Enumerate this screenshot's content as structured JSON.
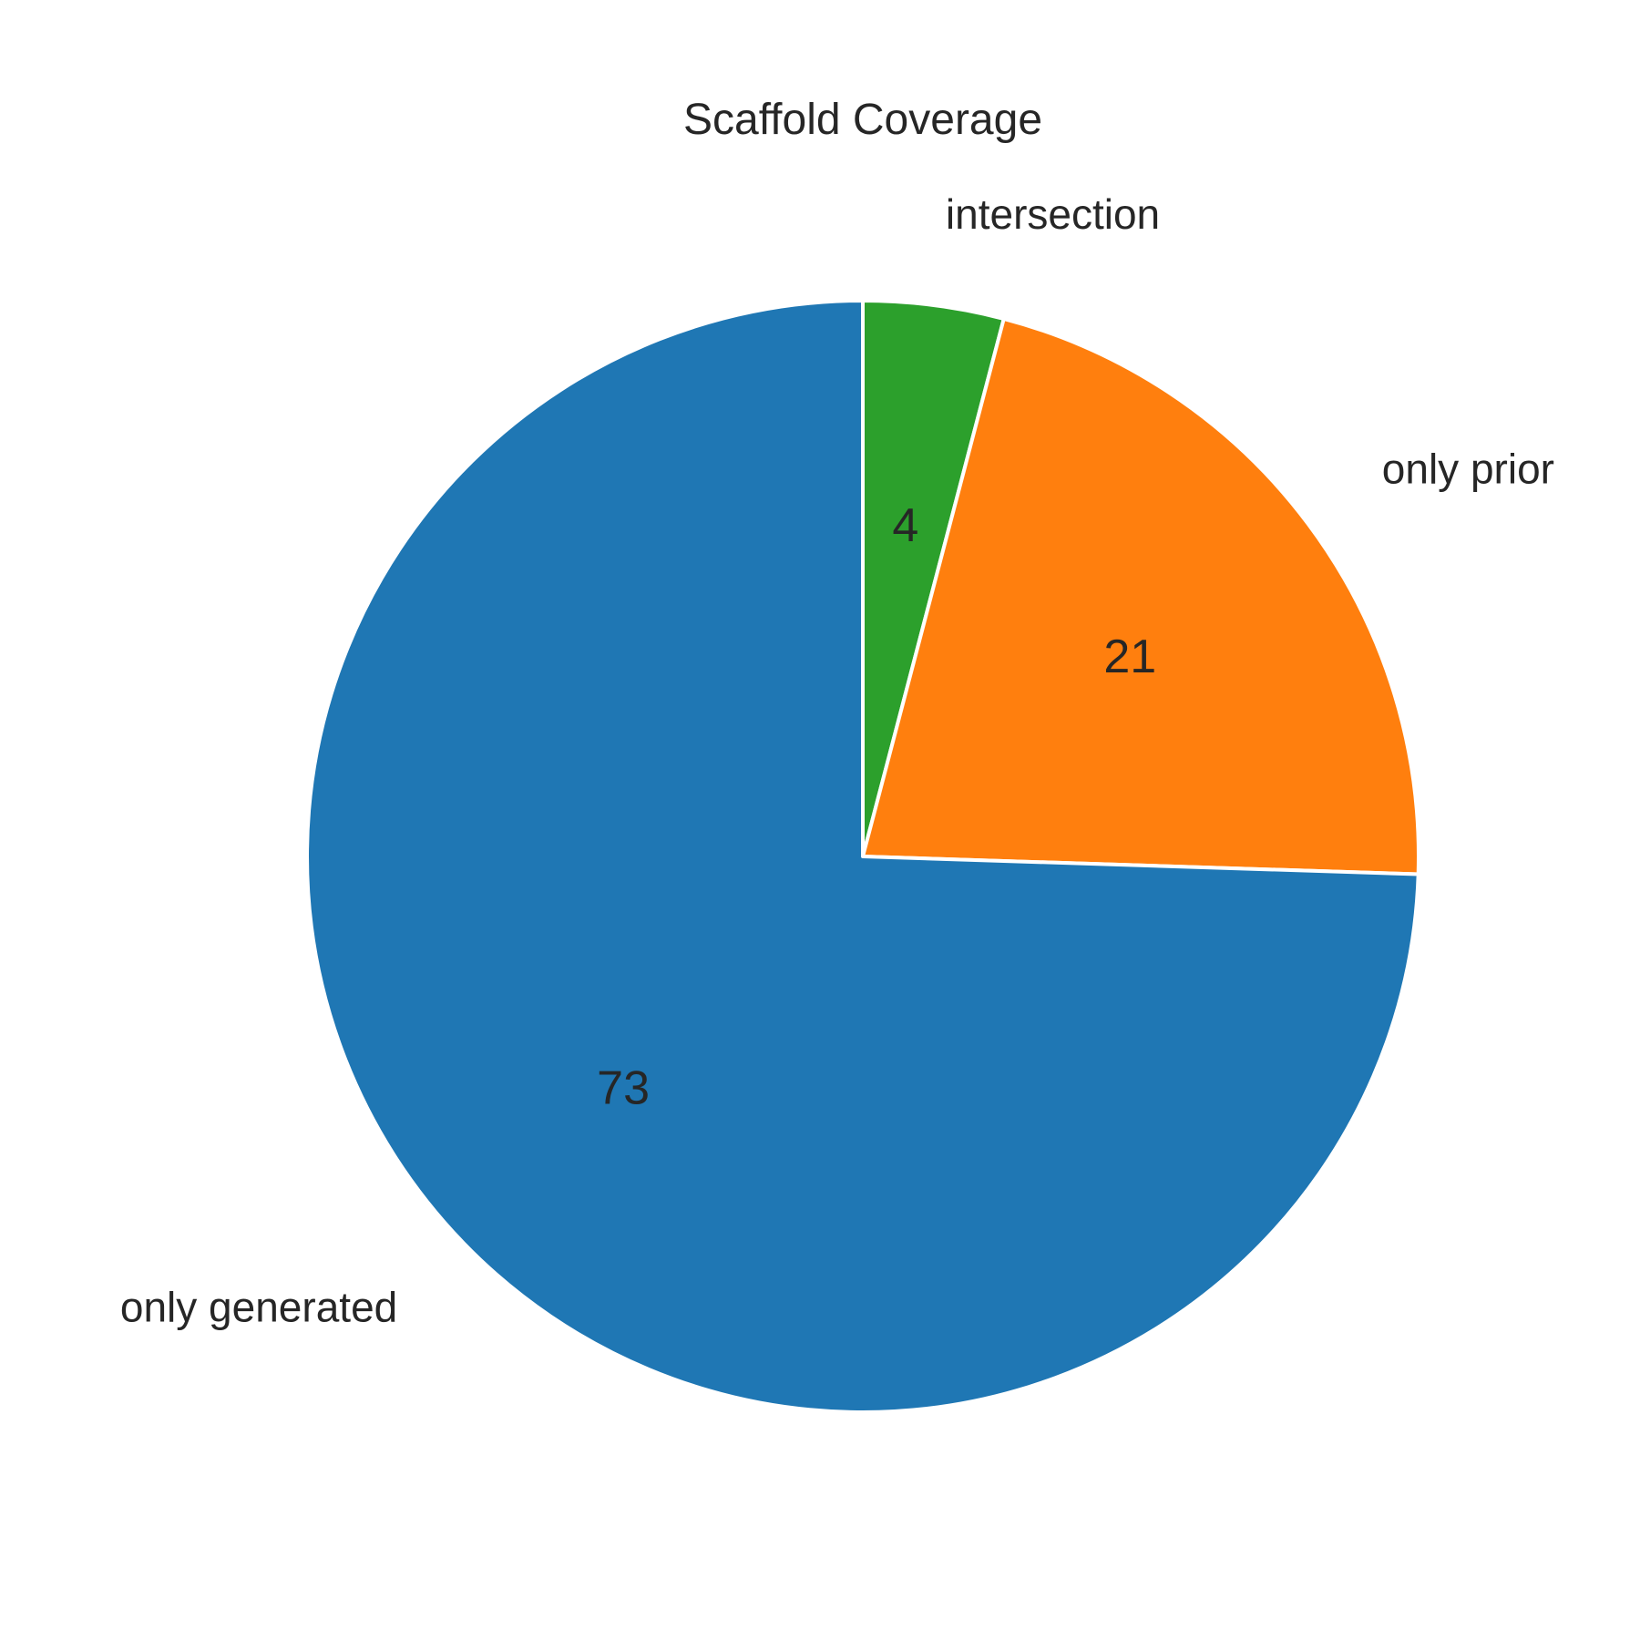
{
  "chart_data": {
    "type": "pie",
    "title": "Scaffold Coverage",
    "slices": [
      {
        "label": "intersection",
        "value": 4,
        "value_label": "4",
        "color": "#2ca02c"
      },
      {
        "label": "only prior",
        "value": 21,
        "value_label": "21",
        "color": "#ff7f0e"
      },
      {
        "label": "only generated",
        "value": 73,
        "value_label": "73",
        "color": "#1f77b4"
      }
    ],
    "start_angle_deg": 90,
    "direction": "clockwise",
    "wedge_edge_color": "#ffffff"
  }
}
